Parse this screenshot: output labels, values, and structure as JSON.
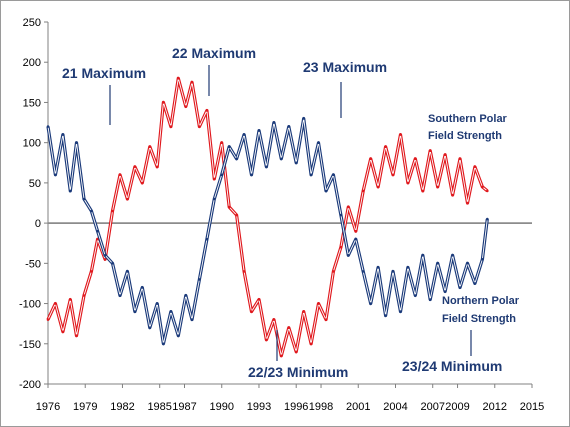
{
  "chart_data": {
    "type": "line",
    "title": "",
    "xlabel": "",
    "ylabel": "",
    "xlim": [
      1976,
      2015
    ],
    "ylim": [
      -200,
      250
    ],
    "grid": false,
    "y_ticks": [
      250,
      200,
      150,
      100,
      50,
      0,
      -50,
      -100,
      -150,
      -200
    ],
    "x_ticks": [
      1976,
      1979,
      1982,
      1985,
      1987,
      1990,
      1993,
      1996,
      1998,
      2001,
      2004,
      2007,
      2009,
      2012,
      2015
    ],
    "x_tick_labels": [
      "1976",
      "1979",
      "1982",
      "1985",
      "1987",
      "1990",
      "1993",
      "1996",
      "1998",
      "2001",
      "2004",
      "2007",
      "2009",
      "2012",
      "2015"
    ],
    "series": [
      {
        "name": "Southern Polar Field Strength",
        "color": "#e0191e",
        "x": [
          1976.0,
          1976.6,
          1977.2,
          1977.8,
          1978.3,
          1978.9,
          1979.5,
          1980.0,
          1980.6,
          1981.2,
          1981.8,
          1982.4,
          1983.0,
          1983.6,
          1984.2,
          1984.8,
          1985.3,
          1985.9,
          1986.5,
          1987.1,
          1987.6,
          1988.2,
          1988.8,
          1989.4,
          1990.0,
          1990.6,
          1991.2,
          1991.8,
          1992.4,
          1993.0,
          1993.6,
          1994.2,
          1994.8,
          1995.4,
          1996.0,
          1996.6,
          1997.2,
          1997.8,
          1998.4,
          1999.0,
          1999.6,
          2000.2,
          2000.8,
          2001.4,
          2002.0,
          2002.6,
          2003.2,
          2003.8,
          2004.4,
          2005.0,
          2005.6,
          2006.2,
          2006.8,
          2007.4,
          2008.0,
          2008.6,
          2009.2,
          2009.8,
          2010.4,
          2011.0,
          2011.4
        ],
        "y": [
          -120,
          -100,
          -135,
          -95,
          -140,
          -90,
          -60,
          -20,
          -45,
          15,
          60,
          30,
          70,
          50,
          95,
          70,
          150,
          120,
          180,
          145,
          175,
          120,
          140,
          55,
          100,
          20,
          10,
          -60,
          -110,
          -95,
          -145,
          -120,
          -165,
          -130,
          -160,
          -110,
          -150,
          -100,
          -120,
          -60,
          -30,
          20,
          -10,
          40,
          80,
          45,
          95,
          60,
          110,
          50,
          80,
          40,
          90,
          45,
          85,
          35,
          80,
          25,
          70,
          45,
          40
        ]
      },
      {
        "name": "Northern Polar Field Strength",
        "color": "#1b3a7a",
        "x": [
          1976.0,
          1976.6,
          1977.2,
          1977.8,
          1978.3,
          1978.9,
          1979.5,
          1980.0,
          1980.6,
          1981.2,
          1981.8,
          1982.4,
          1983.0,
          1983.6,
          1984.2,
          1984.8,
          1985.3,
          1985.9,
          1986.5,
          1987.1,
          1987.6,
          1988.2,
          1988.8,
          1989.4,
          1990.0,
          1990.6,
          1991.2,
          1991.8,
          1992.4,
          1993.0,
          1993.6,
          1994.2,
          1994.8,
          1995.4,
          1996.0,
          1996.6,
          1997.2,
          1997.8,
          1998.4,
          1999.0,
          1999.6,
          2000.2,
          2000.8,
          2001.4,
          2002.0,
          2002.6,
          2003.2,
          2003.8,
          2004.4,
          2005.0,
          2005.6,
          2006.2,
          2006.8,
          2007.4,
          2008.0,
          2008.6,
          2009.2,
          2009.8,
          2010.4,
          2011.0,
          2011.4
        ],
        "y": [
          120,
          60,
          110,
          40,
          100,
          30,
          15,
          -10,
          -40,
          -50,
          -90,
          -60,
          -110,
          -80,
          -130,
          -100,
          -150,
          -110,
          -140,
          -90,
          -120,
          -70,
          -20,
          30,
          60,
          95,
          80,
          110,
          60,
          115,
          70,
          125,
          80,
          120,
          75,
          130,
          60,
          100,
          40,
          60,
          10,
          -40,
          -20,
          -60,
          -100,
          -55,
          -115,
          -60,
          -110,
          -55,
          -90,
          -40,
          -95,
          -50,
          -85,
          -40,
          -80,
          -50,
          -75,
          -45,
          5
        ]
      }
    ],
    "annotations": [
      {
        "text": "21 Maximum",
        "x": 1981.0
      },
      {
        "text": "22 Maximum",
        "x": 1989.0
      },
      {
        "text": "23 Maximum",
        "x": 2000.2
      },
      {
        "text": "Southern Polar",
        "x": 2010.0
      },
      {
        "text": "Field Strength",
        "x": 2010.0
      },
      {
        "text": "Northern Polar",
        "x": 2010.0
      },
      {
        "text": "Field Strength",
        "x": 2010.0
      },
      {
        "text": "22/23 Minimum",
        "x": 1996.0
      },
      {
        "text": "23/24 Minimum",
        "x": 2010.0
      }
    ]
  }
}
